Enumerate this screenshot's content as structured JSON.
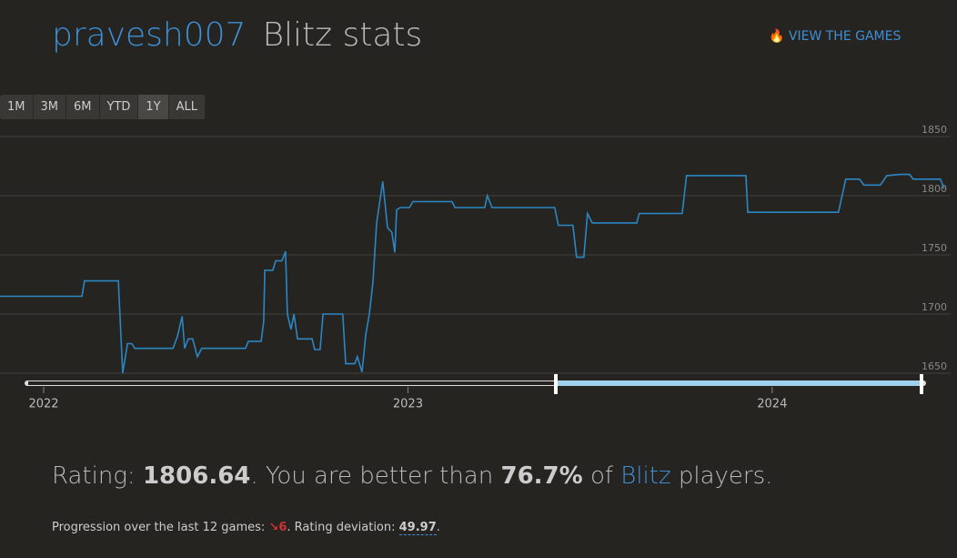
{
  "header": {
    "username": "pravesh007",
    "title": "Blitz stats",
    "link": "VIEW THE GAMES"
  },
  "range_buttons": [
    "1M",
    "3M",
    "6M",
    "YTD",
    "1Y",
    "ALL"
  ],
  "chart_data": {
    "type": "line",
    "color": "#2a87c4",
    "grid": true,
    "xlim": [
      2021.88,
      2024.48
    ],
    "xticks": [
      2022,
      2023,
      2024
    ],
    "ylim": [
      1650,
      1850
    ],
    "yticks": [
      1650,
      1700,
      1750,
      1800,
      1850
    ],
    "x": [
      2021.88,
      2022.105,
      2022.112,
      2022.205,
      2022.217,
      2022.23,
      2022.242,
      2022.25,
      2022.355,
      2022.367,
      2022.38,
      2022.387,
      2022.397,
      2022.409,
      2022.422,
      2022.434,
      2022.554,
      2022.562,
      2022.597,
      2022.604,
      2022.607,
      2022.629,
      2022.637,
      2022.654,
      2022.664,
      2022.669,
      2022.679,
      2022.687,
      2022.697,
      2022.737,
      2022.744,
      2022.759,
      2022.767,
      2022.821,
      2022.829,
      2022.854,
      2022.861,
      2022.874,
      2022.884,
      2022.894,
      2022.904,
      2022.914,
      2022.931,
      2022.944,
      2022.956,
      2022.964,
      2022.969,
      2022.979,
      2023.004,
      2023.014,
      2023.121,
      2023.129,
      2023.211,
      2023.218,
      2023.231,
      2023.403,
      2023.413,
      2023.453,
      2023.463,
      2023.483,
      2023.493,
      2023.506,
      2023.628,
      2023.635,
      2023.753,
      2023.765,
      2023.928,
      2023.933,
      2024.182,
      2024.202,
      2024.24,
      2024.252,
      2024.297,
      2024.315,
      2024.352,
      2024.377,
      2024.387,
      2024.462,
      2024.472
    ],
    "values": [
      1715,
      1715,
      1728,
      1728,
      1650,
      1675,
      1675,
      1671,
      1671,
      1681,
      1698,
      1671,
      1679,
      1679,
      1664,
      1671,
      1671,
      1677,
      1677,
      1694,
      1737,
      1737,
      1745,
      1745,
      1753,
      1700,
      1687,
      1700,
      1679,
      1679,
      1670,
      1670,
      1700,
      1700,
      1658,
      1658,
      1664,
      1651,
      1682,
      1700,
      1727,
      1777,
      1812,
      1773,
      1769,
      1752,
      1788,
      1790,
      1790,
      1795,
      1795,
      1790,
      1790,
      1800,
      1790,
      1790,
      1775,
      1775,
      1748,
      1748,
      1785,
      1777,
      1777,
      1785,
      1785,
      1817,
      1817,
      1786,
      1786,
      1814,
      1814,
      1809,
      1809,
      1817,
      1818,
      1818,
      1814,
      1814,
      1806
    ]
  },
  "stats": {
    "rating_prefix": "Rating: ",
    "rating": "1806.64",
    "better_prefix": ". You are better than ",
    "percentile": "76.7%",
    "of": " of ",
    "variant": "Blitz",
    "suffix": " players.",
    "progression_label": "Progression over the last 12 games: ",
    "progression": "6",
    "deviation_label": ". Rating deviation: ",
    "deviation": "49.97",
    "end": "."
  }
}
